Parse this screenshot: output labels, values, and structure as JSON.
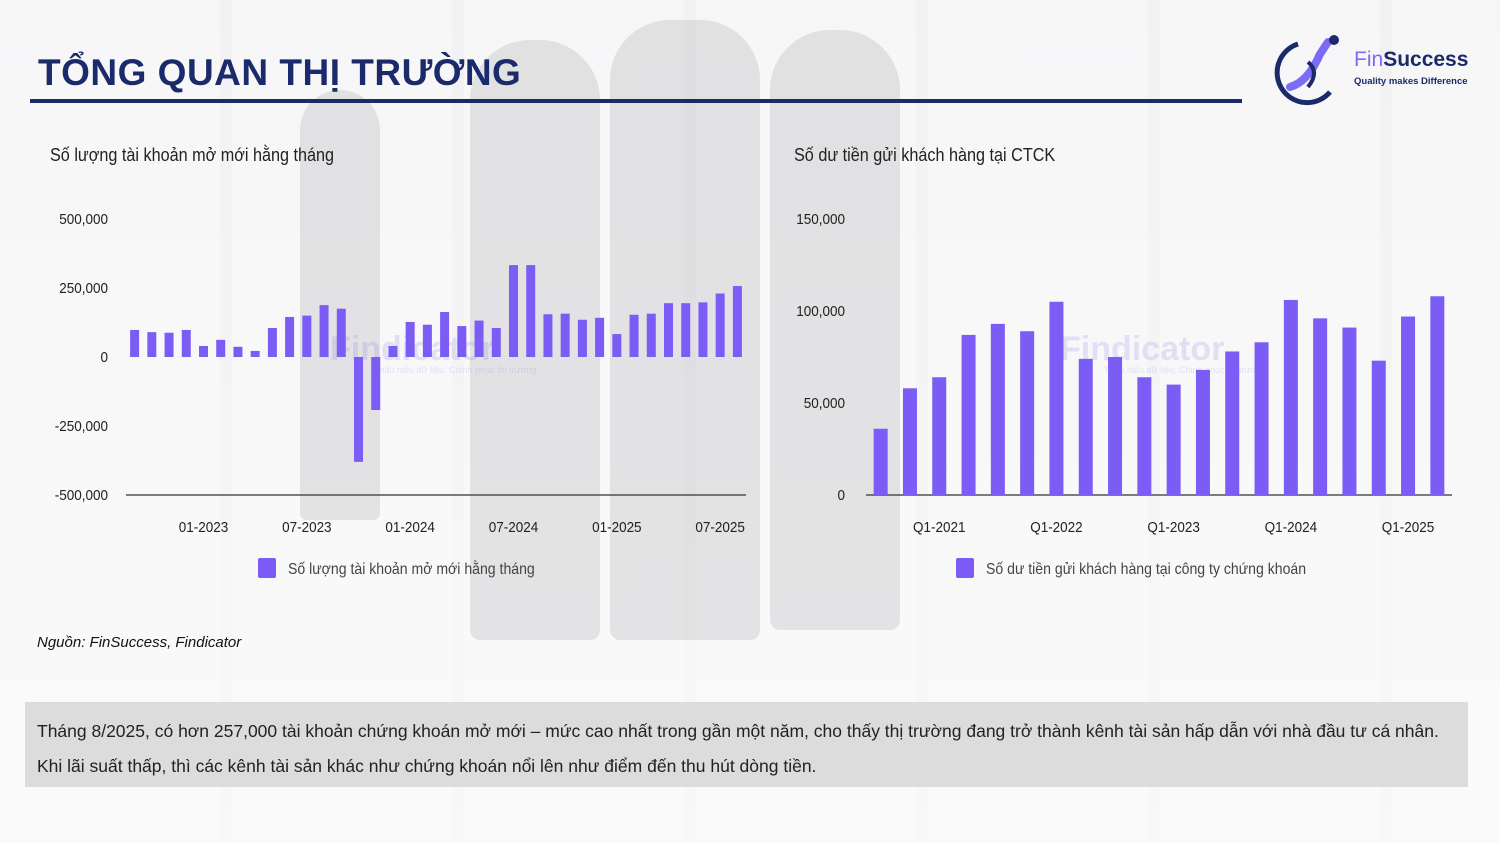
{
  "page": {
    "title": "TỔNG QUAN THỊ TRƯỜNG",
    "logo": {
      "brand_prefix": "Fin",
      "brand_suffix": "Success",
      "tagline": "Quality makes Difference"
    },
    "source": "Nguồn: FinSuccess, Findicator",
    "note": "Tháng 8/2025, có hơn 257,000 tài khoản chứng khoán mở mới – mức cao nhất trong gần một năm, cho thấy thị trường đang trở thành kênh tài sản hấp dẫn với nhà đầu tư cá nhân. Khi lãi suất thấp, thì các kênh tài sản khác như chứng khoán nổi lên như điểm đến thu hút dòng tiền.",
    "watermark": {
      "name": "Findicator",
      "tagline": "Thấu hiểu dữ liệu, Chinh phục thị trường"
    },
    "accent_color": "#7b5cf5",
    "title_color": "#1b2a6b"
  },
  "chart_data": [
    {
      "type": "bar",
      "title": "Số lượng tài khoản mở mới hằng tháng",
      "xlabel": "",
      "ylabel": "",
      "ylim": [
        -500000,
        500000
      ],
      "yticks": [
        500000,
        250000,
        0,
        -250000,
        -500000
      ],
      "ytick_labels": [
        "500,000",
        "250,000",
        "0",
        "-250,000",
        "-500,000"
      ],
      "categories": [
        "09-2022",
        "10-2022",
        "11-2022",
        "12-2022",
        "01-2023",
        "02-2023",
        "03-2023",
        "04-2023",
        "05-2023",
        "06-2023",
        "07-2023",
        "08-2023",
        "09-2023",
        "10-2023",
        "11-2023",
        "12-2023",
        "01-2024",
        "02-2024",
        "03-2024",
        "04-2024",
        "05-2024",
        "06-2024",
        "07-2024",
        "08-2024",
        "09-2024",
        "10-2024",
        "11-2024",
        "12-2024",
        "01-2025",
        "02-2025",
        "03-2025",
        "04-2025",
        "05-2025",
        "06-2025",
        "07-2025",
        "08-2025"
      ],
      "xtick_labels": [
        "01-2023",
        "07-2023",
        "01-2024",
        "07-2024",
        "01-2025",
        "07-2025"
      ],
      "series": [
        {
          "name": "Số lượng tài khoản mở mới hằng tháng",
          "color": "#7b5cf5",
          "values": [
            98000,
            90000,
            88000,
            98000,
            40000,
            62000,
            37000,
            22000,
            105000,
            145000,
            150000,
            188000,
            175000,
            -380000,
            -192000,
            40000,
            127000,
            117000,
            163000,
            112000,
            132000,
            105000,
            333000,
            333000,
            155000,
            157000,
            135000,
            142000,
            83000,
            153000,
            157000,
            195000,
            195000,
            198000,
            230000,
            257000
          ]
        }
      ],
      "legend": {
        "position": "bottom",
        "entries": [
          "Số lượng tài khoản mở mới hằng tháng"
        ]
      },
      "grid": false
    },
    {
      "type": "bar",
      "title": "Số dư tiền gửi khách hàng tại CTCK",
      "xlabel": "",
      "ylabel": "",
      "ylim": [
        0,
        150000
      ],
      "yticks": [
        150000,
        100000,
        50000,
        0
      ],
      "ytick_labels": [
        "150,000",
        "100,000",
        "50,000",
        "0"
      ],
      "categories": [
        "Q3-2020",
        "Q4-2020",
        "Q1-2021",
        "Q2-2021",
        "Q3-2021",
        "Q4-2021",
        "Q1-2022",
        "Q2-2022",
        "Q3-2022",
        "Q4-2022",
        "Q1-2023",
        "Q2-2023",
        "Q3-2023",
        "Q4-2023",
        "Q1-2024",
        "Q2-2024",
        "Q3-2024",
        "Q4-2024",
        "Q1-2025",
        "Q2-2025"
      ],
      "xtick_labels": [
        "Q1-2021",
        "Q1-2022",
        "Q1-2023",
        "Q1-2024",
        "Q1-2025"
      ],
      "series": [
        {
          "name": "Số dư tiền gửi khách hàng tại công ty chứng khoán",
          "color": "#7b5cf5",
          "values": [
            36000,
            58000,
            64000,
            87000,
            93000,
            89000,
            105000,
            74000,
            75000,
            64000,
            60000,
            68000,
            78000,
            83000,
            106000,
            96000,
            91000,
            73000,
            97000,
            108000
          ]
        }
      ],
      "legend": {
        "position": "bottom",
        "entries": [
          "Số dư tiền gửi khách hàng tại công ty chứng khoán"
        ]
      },
      "grid": false
    }
  ]
}
